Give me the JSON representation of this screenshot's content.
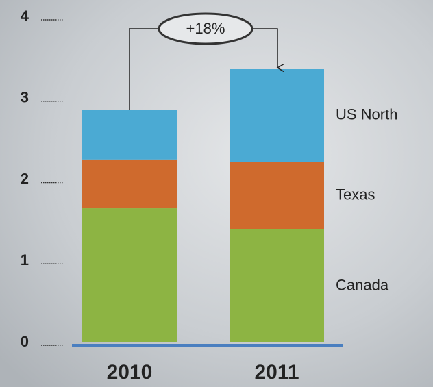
{
  "chart_data": {
    "type": "stacked_bar",
    "categories": [
      "2010",
      "2011"
    ],
    "series": [
      {
        "name": "Canada",
        "color": "#8db443",
        "values": [
          1.65,
          1.39
        ]
      },
      {
        "name": "Texas",
        "color": "#cf6a2d",
        "values": [
          0.6,
          0.83
        ]
      },
      {
        "name": "US North",
        "color": "#4baad3",
        "values": [
          0.61,
          1.14
        ]
      }
    ],
    "ylim": [
      0,
      4
    ],
    "yticks": [
      0,
      1,
      2,
      3,
      4
    ],
    "annotation": "+18%"
  }
}
